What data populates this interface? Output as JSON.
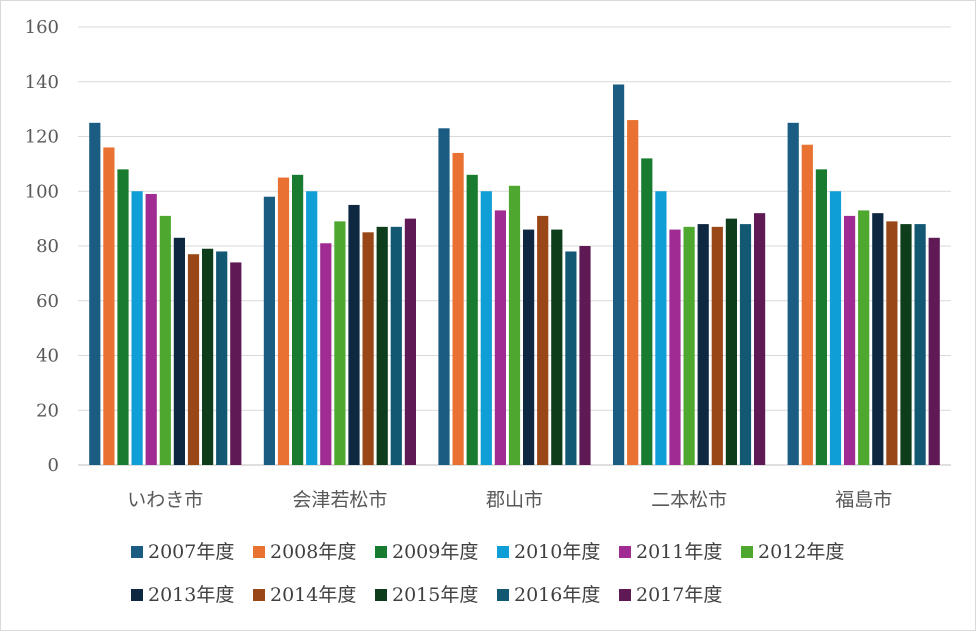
{
  "chart_data": {
    "type": "bar",
    "title": "",
    "xlabel": "",
    "ylabel": "",
    "ylim": [
      0,
      160
    ],
    "yticks": [
      0,
      20,
      40,
      60,
      80,
      100,
      120,
      140,
      160
    ],
    "grid": true,
    "legend_position": "bottom",
    "categories": [
      "いわき市",
      "会津若松市",
      "郡山市",
      "二本松市",
      "福島市"
    ],
    "series": [
      {
        "name": "2007年度",
        "color": "#1a5c82",
        "values": [
          125,
          98,
          123,
          139,
          125
        ]
      },
      {
        "name": "2008年度",
        "color": "#e97132",
        "values": [
          116,
          105,
          114,
          126,
          117
        ]
      },
      {
        "name": "2009年度",
        "color": "#197b30",
        "values": [
          108,
          106,
          106,
          112,
          108
        ]
      },
      {
        "name": "2010年度",
        "color": "#0f9ed5",
        "values": [
          100,
          100,
          100,
          100,
          100
        ]
      },
      {
        "name": "2011年度",
        "color": "#a02b93",
        "values": [
          99,
          81,
          93,
          86,
          91
        ]
      },
      {
        "name": "2012年度",
        "color": "#4ea72e",
        "values": [
          91,
          89,
          102,
          87,
          93
        ]
      },
      {
        "name": "2013年度",
        "color": "#0e2841",
        "values": [
          83,
          95,
          86,
          88,
          92
        ]
      },
      {
        "name": "2014年度",
        "color": "#9a4717",
        "values": [
          77,
          85,
          91,
          87,
          89
        ]
      },
      {
        "name": "2015年度",
        "color": "#0d3d1b",
        "values": [
          79,
          87,
          86,
          90,
          88
        ]
      },
      {
        "name": "2016年度",
        "color": "#135873",
        "values": [
          78,
          87,
          78,
          88,
          88
        ]
      },
      {
        "name": "2017年度",
        "color": "#5f1955",
        "values": [
          74,
          90,
          80,
          92,
          83
        ]
      }
    ]
  }
}
